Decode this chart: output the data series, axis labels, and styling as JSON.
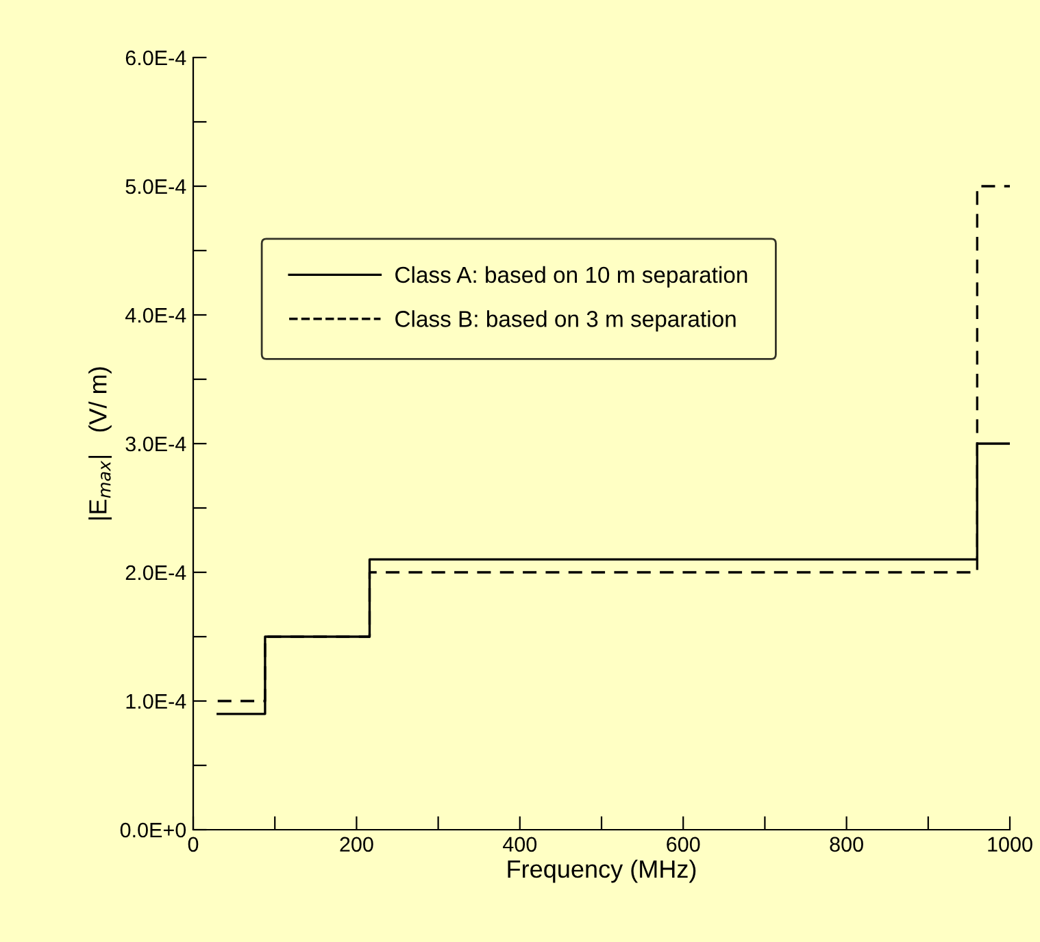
{
  "chart_data": {
    "type": "step",
    "xlabel": "Frequency (MHz)",
    "ylabel": "|E$_{max}$|   (V/ m)",
    "series": [
      {
        "name": "Class A: based on 10 m separation",
        "color": "#000000",
        "line_style": "solid",
        "x": [
          30,
          88,
          216,
          960,
          1000
        ],
        "values": [
          9e-05,
          0.00015,
          0.00021,
          0.0003,
          0.0003
        ]
      },
      {
        "name": "Class B: based on 3 m separation",
        "color": "#000000",
        "line_style": "dashed",
        "x": [
          30,
          88,
          216,
          960,
          1000
        ],
        "values": [
          0.0001,
          0.00015,
          0.0002,
          0.0005,
          0.0005
        ]
      }
    ],
    "xlim": [
      0,
      1000
    ],
    "xticks": [
      0,
      {
        "value": 100,
        "label": null
      },
      200,
      {
        "value": 300,
        "label": null
      },
      400,
      {
        "value": 500,
        "label": null
      },
      600,
      {
        "value": 700,
        "label": null
      },
      800,
      {
        "value": 900,
        "label": null
      },
      1000
    ],
    "ylim": [
      0,
      0.0006
    ],
    "yticks": [
      {
        "value": 0,
        "label": "0.0E+0"
      },
      {
        "value": 5e-05,
        "label": null
      },
      {
        "value": 0.0001,
        "label": "1.0E-4"
      },
      {
        "value": 0.00015,
        "label": null
      },
      {
        "value": 0.0002,
        "label": "2.0E-4"
      },
      {
        "value": 0.00025,
        "label": null
      },
      {
        "value": 0.0003,
        "label": "3.0E-4"
      },
      {
        "value": 0.00035,
        "label": null
      },
      {
        "value": 0.0004,
        "label": "4.0E-4"
      },
      {
        "value": 0.00045,
        "label": null
      },
      {
        "value": 0.0005,
        "label": "5.0E-4"
      },
      {
        "value": 0.00055,
        "label": null
      },
      {
        "value": 0.0006,
        "label": "6.0E-4"
      }
    ],
    "grid": false,
    "legend": "top left"
  }
}
